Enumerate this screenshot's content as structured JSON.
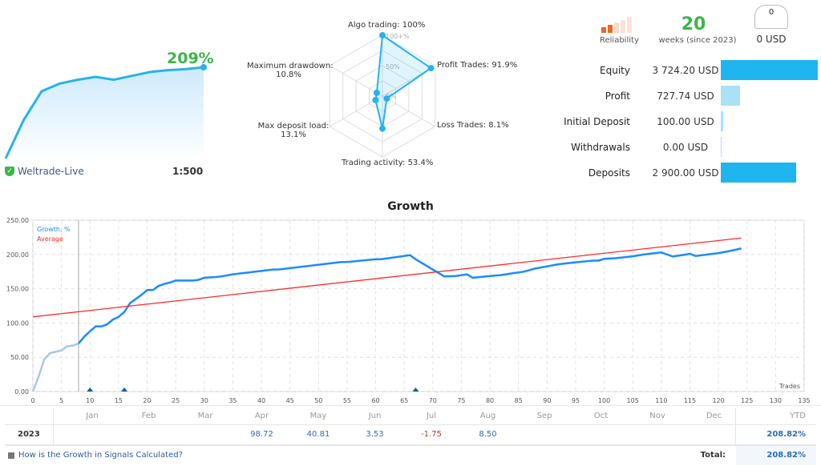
{
  "summary": {
    "growth": "209%",
    "broker": "Weltrade-Live",
    "leverage": "1:500",
    "sparkline": [
      0,
      40,
      70,
      78,
      82,
      85,
      82,
      86,
      90,
      92,
      93,
      95
    ]
  },
  "radar": {
    "scale_labels": [
      "100+%",
      "50%",
      "0%"
    ],
    "axes": [
      {
        "label": "Algo trading:",
        "value": "100%",
        "v": 100
      },
      {
        "label": "Profit Trades:",
        "value": "91.9%",
        "v": 91.9
      },
      {
        "label": "Loss Trades:",
        "value": "8.1%",
        "v": 8.1
      },
      {
        "label": "Trading activity:",
        "value": "53.4%",
        "v": 53.4
      },
      {
        "label": "Max deposit load:",
        "value": "13.1%",
        "v": 13.1
      },
      {
        "label": "Maximum drawdown:",
        "value": "10.8%",
        "v": 10.8
      }
    ]
  },
  "stats": {
    "reliability_label": "Reliability",
    "reliability_level": 2,
    "weeks": "20",
    "weeks_label": "weeks (since 2023)",
    "subscribers": "0",
    "subscribers_cost": "0 USD"
  },
  "finance": [
    {
      "label": "Equity",
      "value": "3 724.20 USD",
      "amount": 3724.2,
      "color": "#1fb5ee"
    },
    {
      "label": "Profit",
      "value": "727.74 USD",
      "amount": 727.74,
      "color": "#a9e1f7"
    },
    {
      "label": "Initial Deposit",
      "value": "100.00 USD",
      "amount": 100,
      "color": "#a9e1f7"
    },
    {
      "label": "Withdrawals",
      "value": "0.00 USD",
      "amount": 0,
      "color": "#a9e1f7"
    },
    {
      "label": "Deposits",
      "value": "2 900.00 USD",
      "amount": 2900,
      "color": "#1fb5ee"
    }
  ],
  "chart_data": {
    "type": "line",
    "title": "Growth",
    "xlabel": "Trades",
    "ylim": [
      0,
      250
    ],
    "xlim": [
      0,
      135
    ],
    "yticks": [
      "0.00",
      "50.00",
      "100.00",
      "150.00",
      "200.00",
      "250.00"
    ],
    "xticks": [
      0,
      5,
      10,
      15,
      20,
      25,
      30,
      35,
      40,
      45,
      50,
      55,
      60,
      65,
      70,
      75,
      80,
      85,
      90,
      95,
      100,
      105,
      110,
      115,
      120,
      125,
      130,
      135
    ],
    "grid": true,
    "legend": "top-left",
    "series": [
      {
        "name": "Growth, %",
        "color": "#1a8cff",
        "x": [
          0,
          1,
          2,
          3,
          4,
          5,
          6,
          7,
          8,
          9,
          10,
          11,
          12,
          13,
          14,
          15,
          16,
          17,
          18,
          19,
          20,
          21,
          22,
          23,
          24,
          25,
          26,
          28,
          29,
          30,
          32,
          33,
          35,
          40,
          42,
          43,
          45,
          50,
          54,
          55,
          60,
          61,
          66,
          67,
          72,
          74,
          76,
          77,
          80,
          82,
          84,
          86,
          88,
          90,
          92,
          95,
          98,
          99,
          100,
          102,
          105,
          107,
          110,
          112,
          114,
          115,
          116,
          120,
          122,
          124
        ],
        "y": [
          0,
          22,
          47,
          56,
          58,
          60,
          66,
          67,
          70,
          80,
          88,
          95,
          95,
          98,
          105,
          109,
          116,
          129,
          135,
          141,
          148,
          148,
          154,
          157,
          159,
          162,
          162,
          162,
          163,
          166,
          167,
          168,
          171,
          176,
          178,
          178,
          180,
          185,
          189,
          189,
          193,
          193,
          199,
          193,
          168,
          168.5,
          171,
          166,
          168.5,
          170,
          172.6,
          175,
          179.6,
          182.6,
          185.7,
          188.5,
          191,
          191,
          193.6,
          194.5,
          197.3,
          200,
          203,
          197,
          199.5,
          201,
          197.7,
          202,
          205,
          208.8
        ]
      },
      {
        "name": "Average",
        "color": "#ff2a2a",
        "x": [
          0,
          124
        ],
        "y": [
          109,
          224
        ]
      }
    ],
    "markers": [
      10,
      16,
      67
    ]
  },
  "monthly": {
    "months": [
      "Jan",
      "Feb",
      "Mar",
      "Apr",
      "May",
      "Jun",
      "Jul",
      "Aug",
      "Sep",
      "Oct",
      "Nov",
      "Dec"
    ],
    "ytd_label": "YTD",
    "year": "2023",
    "values": [
      "",
      "",
      "",
      "98.72",
      "40.81",
      "3.53",
      "-1.75",
      "8.50",
      "",
      "",
      "",
      ""
    ],
    "ytd": "208.82%",
    "help_link": "How is the Growth in Signals Calculated?",
    "total_label": "Total:",
    "total": "208.82%"
  }
}
